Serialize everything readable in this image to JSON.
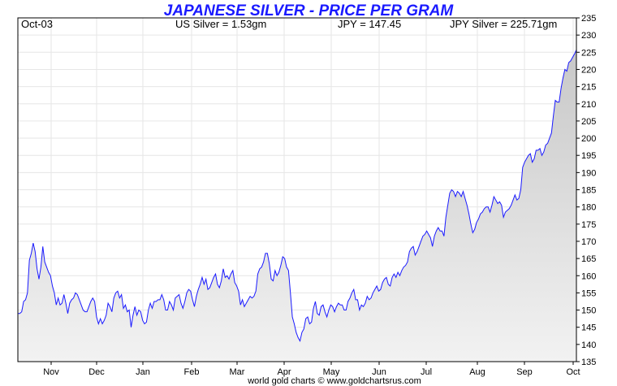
{
  "header": {
    "title": "JAPANESE SILVER - PRICE PER GRAM",
    "date": "Oct-03",
    "us_silver": "US Silver = 1.53gm",
    "jpy": "JPY = 147.45",
    "jpy_silver": "JPY Silver = 225.71gm"
  },
  "footer": {
    "credit": "world gold charts © www.goldchartsrus.com"
  },
  "colors": {
    "line": "#1a1aff",
    "title": "#1a1aff",
    "fill_top": "#c8c8c8",
    "fill_bottom": "#f2f2f2"
  },
  "chart_data": {
    "type": "area",
    "title": "JAPANESE SILVER - PRICE PER GRAM",
    "ylim": [
      135,
      235
    ],
    "y_ticks": [
      135,
      140,
      145,
      150,
      155,
      160,
      165,
      170,
      175,
      180,
      185,
      190,
      195,
      200,
      205,
      210,
      215,
      220,
      225,
      230,
      235
    ],
    "x_ticks": [
      "Nov",
      "Dec",
      "Jan",
      "Feb",
      "Mar",
      "Apr",
      "May",
      "Jun",
      "Jul",
      "Aug",
      "Sep",
      "Oct"
    ],
    "grid": true,
    "series": [
      {
        "values": [
          149.0,
          149.0,
          149.5,
          152.5,
          153.0,
          155.0,
          164.5,
          166.5,
          169.5,
          167.0,
          162.0,
          159.0,
          162.5,
          168.5,
          164.0,
          162.5,
          161.0,
          160.0,
          157.0,
          155.0,
          151.5,
          153.5,
          151.5,
          152.0,
          154.5,
          152.0,
          149.0,
          152.0,
          153.0,
          153.5,
          155.0,
          154.5,
          153.0,
          151.5,
          150.0,
          149.5,
          149.5,
          151.0,
          152.5,
          153.5,
          152.5,
          148.0,
          146.0,
          147.5,
          146.0,
          147.0,
          148.5,
          152.0,
          151.0,
          149.5,
          153.5,
          155.0,
          155.5,
          153.5,
          154.5,
          150.5,
          151.5,
          149.5,
          150.0,
          145.0,
          148.5,
          151.0,
          148.5,
          150.0,
          149.5,
          147.0,
          146.0,
          146.5,
          150.0,
          152.0,
          150.5,
          152.5,
          152.5,
          153.0,
          153.0,
          154.5,
          153.0,
          150.0,
          150.0,
          152.5,
          151.5,
          150.0,
          153.5,
          154.0,
          154.5,
          152.0,
          150.5,
          152.5,
          155.0,
          156.0,
          155.5,
          153.0,
          151.0,
          154.0,
          156.0,
          157.5,
          159.5,
          157.5,
          159.0,
          156.0,
          156.5,
          158.0,
          159.5,
          160.5,
          157.5,
          156.5,
          158.5,
          162.0,
          159.5,
          160.0,
          159.0,
          160.5,
          161.5,
          158.0,
          157.0,
          155.5,
          151.5,
          153.0,
          151.0,
          152.0,
          153.0,
          154.0,
          153.5,
          154.0,
          155.5,
          160.5,
          162.0,
          162.5,
          164.0,
          166.5,
          166.5,
          163.5,
          159.0,
          158.5,
          161.5,
          160.0,
          161.0,
          163.0,
          165.5,
          165.0,
          162.5,
          161.5,
          155.0,
          148.0,
          146.0,
          143.5,
          142.0,
          141.0,
          143.5,
          144.5,
          147.5,
          148.0,
          146.0,
          146.5,
          150.5,
          152.5,
          149.0,
          148.5,
          151.0,
          151.5,
          149.5,
          148.0,
          150.0,
          151.5,
          151.0,
          149.5,
          151.0,
          152.0,
          151.5,
          151.5,
          150.0,
          150.0,
          152.5,
          153.5,
          155.0,
          156.0,
          153.0,
          153.0,
          150.0,
          151.5,
          151.0,
          152.0,
          154.0,
          153.0,
          153.5,
          155.0,
          156.0,
          157.0,
          155.5,
          156.0,
          158.0,
          159.0,
          159.5,
          157.5,
          157.0,
          159.5,
          160.5,
          159.5,
          161.0,
          160.0,
          161.5,
          162.5,
          163.0,
          164.0,
          167.0,
          168.0,
          168.5,
          166.0,
          167.0,
          168.5,
          170.0,
          171.5,
          172.0,
          173.0,
          172.0,
          171.0,
          168.5,
          171.5,
          173.0,
          174.0,
          173.0,
          173.0,
          171.5,
          177.0,
          180.5,
          184.0,
          185.0,
          184.5,
          183.0,
          184.5,
          184.0,
          183.0,
          184.5,
          182.5,
          180.5,
          178.0,
          175.0,
          172.5,
          173.5,
          175.5,
          176.5,
          178.0,
          178.5,
          179.5,
          180.0,
          180.0,
          178.5,
          180.5,
          183.0,
          182.0,
          181.0,
          181.5,
          180.5,
          177.0,
          178.5,
          179.0,
          179.5,
          180.5,
          182.0,
          183.5,
          182.0,
          182.5,
          185.0,
          191.5,
          193.0,
          194.0,
          195.0,
          195.5,
          193.0,
          194.0,
          196.5,
          196.5,
          197.0,
          195.0,
          196.0,
          198.0,
          198.5,
          200.0,
          201.5,
          206.5,
          211.0,
          210.5,
          210.5,
          214.5,
          217.5,
          220.0,
          219.5,
          222.0,
          222.5,
          223.5,
          224.5,
          225.7
        ]
      }
    ]
  }
}
